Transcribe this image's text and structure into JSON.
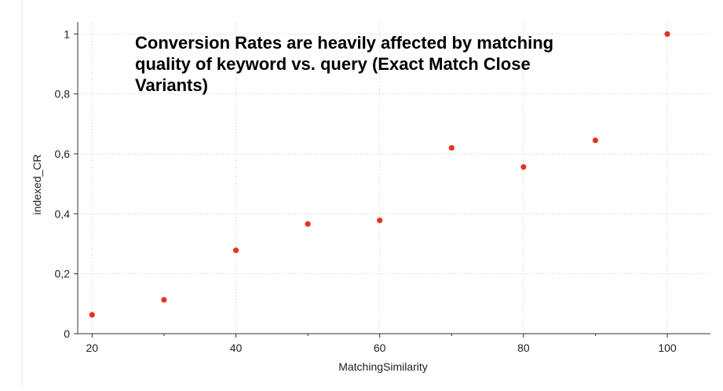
{
  "chart_data": {
    "type": "scatter",
    "title_lines": [
      "Conversion Rates are heavily affected by matching",
      "quality of keyword vs. query (Exact Match Close",
      "Variants)"
    ],
    "xlabel": "MatchingSimilarity",
    "ylabel": "indexed_CR",
    "xlim": [
      18,
      106
    ],
    "ylim": [
      0,
      1.04
    ],
    "x_ticks": [
      20,
      40,
      60,
      80,
      100
    ],
    "x_tick_labels": [
      "20",
      "40",
      "60",
      "80",
      "100"
    ],
    "x_minor_ticks": [
      30,
      50,
      70,
      90
    ],
    "y_ticks": [
      0,
      0.2,
      0.4,
      0.6,
      0.8,
      1
    ],
    "y_tick_labels": [
      "0",
      "0,2",
      "0,4",
      "0,6",
      "0,8",
      "1"
    ],
    "grid": true,
    "series": [
      {
        "name": "indexed_CR",
        "color": "#e8321e",
        "points": [
          {
            "x": 20,
            "y": 0.063
          },
          {
            "x": 30,
            "y": 0.113
          },
          {
            "x": 40,
            "y": 0.278
          },
          {
            "x": 50,
            "y": 0.366
          },
          {
            "x": 60,
            "y": 0.378
          },
          {
            "x": 70,
            "y": 0.62
          },
          {
            "x": 80,
            "y": 0.556
          },
          {
            "x": 90,
            "y": 0.645
          },
          {
            "x": 100,
            "y": 1.0
          }
        ]
      }
    ]
  }
}
